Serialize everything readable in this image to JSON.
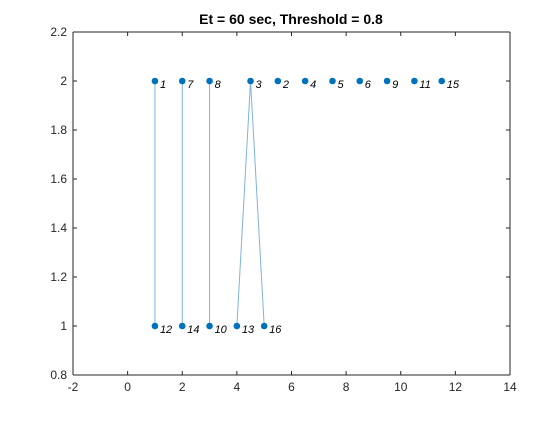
{
  "chart_data": {
    "type": "scatter",
    "title": "Et = 60 sec, Threshold = 0.8",
    "xlabel": "",
    "ylabel": "",
    "xlim": [
      -2,
      14
    ],
    "ylim": [
      0.8,
      2.2
    ],
    "x_ticks": [
      -2,
      0,
      2,
      4,
      6,
      8,
      10,
      12,
      14
    ],
    "y_ticks": [
      0.8,
      1,
      1.2,
      1.4,
      1.6,
      1.8,
      2,
      2.2
    ],
    "grid": false,
    "legend": "none",
    "colors": {
      "marker": "#0072BD",
      "line": "#7FB2DE",
      "axis": "#262626"
    },
    "points": [
      {
        "label": "1",
        "x": 1.0,
        "y": 2
      },
      {
        "label": "7",
        "x": 2.0,
        "y": 2
      },
      {
        "label": "8",
        "x": 3.0,
        "y": 2
      },
      {
        "label": "3",
        "x": 4.5,
        "y": 2
      },
      {
        "label": "2",
        "x": 5.5,
        "y": 2
      },
      {
        "label": "4",
        "x": 6.5,
        "y": 2
      },
      {
        "label": "5",
        "x": 7.5,
        "y": 2
      },
      {
        "label": "6",
        "x": 8.5,
        "y": 2
      },
      {
        "label": "9",
        "x": 9.5,
        "y": 2
      },
      {
        "label": "11",
        "x": 10.5,
        "y": 2
      },
      {
        "label": "15",
        "x": 11.5,
        "y": 2
      },
      {
        "label": "12",
        "x": 1.0,
        "y": 1
      },
      {
        "label": "14",
        "x": 2.0,
        "y": 1
      },
      {
        "label": "10",
        "x": 3.0,
        "y": 1
      },
      {
        "label": "13",
        "x": 4.0,
        "y": 1
      },
      {
        "label": "16",
        "x": 5.0,
        "y": 1
      }
    ],
    "links": [
      [
        [
          1.0,
          2
        ],
        [
          1.0,
          1
        ]
      ],
      [
        [
          2.0,
          2
        ],
        [
          2.0,
          1
        ]
      ],
      [
        [
          3.0,
          2
        ],
        [
          3.0,
          1
        ]
      ],
      [
        [
          4.0,
          1
        ],
        [
          4.5,
          2
        ],
        [
          5.0,
          1
        ]
      ]
    ]
  }
}
